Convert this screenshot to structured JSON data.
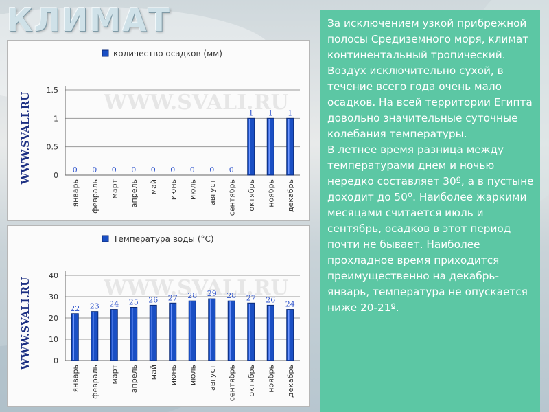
{
  "slide": {
    "title": "КЛИМАТ",
    "paragraphs": [
      "За исключением узкой прибрежной полосы Средиземного моря, климат континентальный тропический. Воздух исключительно сухой, в течение всего года очень мало осадков. На всей территории Египта довольно значительные суточные колебания температуры.",
      "В летнее время разница между температурами днем и ночью нередко составляет 30º, а в пустыне доходит до 50º. Наиболее жаркими месяцами считается июль и сентябрь, осадков в этот период почти не бывает. Наиболее прохладное время приходится преимущественно на декабрь-январь, температура не опускается ниже 20-21º."
    ]
  },
  "colors": {
    "bar": "#1a4fc4",
    "bar_edge": "#0b2a78",
    "label": "#2f54cc",
    "watermark": "#1c2f82",
    "panel": "#5cc7a4"
  },
  "chart_data": [
    {
      "type": "bar",
      "categories": [
        "январь",
        "февраль",
        "март",
        "апрель",
        "май",
        "июнь",
        "июль",
        "август",
        "сентябрь",
        "октябрь",
        "ноябрь",
        "декабрь"
      ],
      "series": [
        {
          "name": "количество осадков (мм)",
          "values": [
            0,
            0,
            0,
            0,
            0,
            0,
            0,
            0,
            0,
            1,
            1,
            1
          ]
        }
      ],
      "data_labels": [
        "0",
        "0",
        "0",
        "0",
        "0",
        "0",
        "0",
        "0",
        "0",
        "1",
        "1",
        "1"
      ],
      "yticks": [
        "0",
        "0.5",
        "1",
        "1.5"
      ],
      "ylim": [
        0,
        1.5
      ],
      "grid": "horizontal",
      "legend": "top",
      "watermark": "WWW.SVALI.RU",
      "side_label": "WWW.SVALI.RU"
    },
    {
      "type": "bar",
      "categories": [
        "январь",
        "февраль",
        "март",
        "апрель",
        "май",
        "июнь",
        "июль",
        "август",
        "сентябрь",
        "октябрь",
        "ноябрь",
        "декабрь"
      ],
      "series": [
        {
          "name": "Температура воды (°С)",
          "values": [
            22,
            23,
            24,
            25,
            26,
            27,
            28,
            29,
            28,
            27,
            26,
            24
          ]
        }
      ],
      "data_labels": [
        "22",
        "23",
        "24",
        "25",
        "26",
        "27",
        "28",
        "29",
        "28",
        "27",
        "26",
        "24"
      ],
      "yticks": [
        "0",
        "10",
        "20",
        "30",
        "40"
      ],
      "ylim": [
        0,
        40
      ],
      "grid": "horizontal",
      "legend": "top",
      "watermark": "WWW.SVALI.RU",
      "side_label": "WWW.SVALI.RU"
    }
  ]
}
